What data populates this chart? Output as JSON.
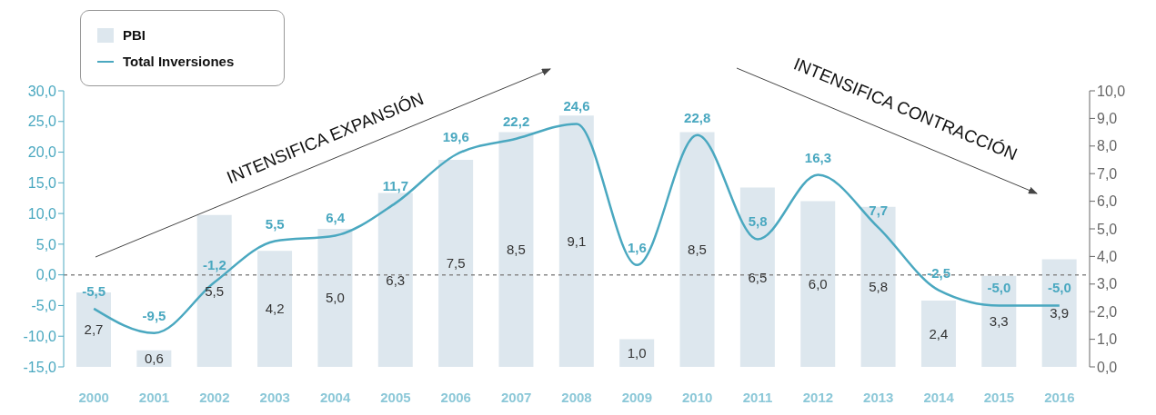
{
  "chart_data": {
    "type": "bar",
    "categories": [
      "2000",
      "2001",
      "2002",
      "2003",
      "2004",
      "2005",
      "2006",
      "2007",
      "2008",
      "2009",
      "2010",
      "2011",
      "2012",
      "2013",
      "2014",
      "2015",
      "2016"
    ],
    "series": [
      {
        "name": "PBI",
        "axis": "y2",
        "color": "#dde7ee",
        "values": [
          2.7,
          0.6,
          5.5,
          4.2,
          5.0,
          6.3,
          7.5,
          8.5,
          9.1,
          1.0,
          8.5,
          6.5,
          6.0,
          5.8,
          2.4,
          3.3,
          3.9
        ],
        "value_labels": [
          "2,7",
          "0,6",
          "5,5",
          "4,2",
          "5,0",
          "6,3",
          "7,5",
          "8,5",
          "9,1",
          "1,0",
          "8,5",
          "6,5",
          "6,0",
          "5,8",
          "2,4",
          "3,3",
          "3,9"
        ]
      },
      {
        "name": "Total Inversiones",
        "type": "line",
        "color": "#4aa8c0",
        "values": [
          -5.5,
          -9.5,
          -1.2,
          5.5,
          6.4,
          11.7,
          19.6,
          22.2,
          24.6,
          1.6,
          22.8,
          5.8,
          16.3,
          7.7,
          -2.5,
          -5.0,
          -5.0
        ],
        "value_labels": [
          "-5,5",
          "-9,5",
          "-1,2",
          "5,5",
          "6,4",
          "11,7",
          "19,6",
          "22,2",
          "24,6",
          "1,6",
          "22,8",
          "5,8",
          "16,3",
          "7,7",
          "-2,5",
          "-5,0",
          "-5,0"
        ]
      }
    ],
    "ylim": [
      -15,
      30
    ],
    "yticks": [
      {
        "value": -15,
        "label": "-15,0"
      },
      {
        "value": -10,
        "label": "-10,0"
      },
      {
        "value": -5,
        "label": "-5,0"
      },
      {
        "value": 0,
        "label": "0,0"
      },
      {
        "value": 5,
        "label": "5,0"
      },
      {
        "value": 10,
        "label": "10,0"
      },
      {
        "value": 15,
        "label": "15,0"
      },
      {
        "value": 20,
        "label": "20,0"
      },
      {
        "value": 25,
        "label": "25,0"
      },
      {
        "value": 30,
        "label": "30,0"
      }
    ],
    "y2lim": [
      0,
      10
    ],
    "y2ticks": [
      {
        "value": 0,
        "label": "0,0"
      },
      {
        "value": 1,
        "label": "1,0"
      },
      {
        "value": 2,
        "label": "2,0"
      },
      {
        "value": 3,
        "label": "3,0"
      },
      {
        "value": 4,
        "label": "4,0"
      },
      {
        "value": 5,
        "label": "5,0"
      },
      {
        "value": 6,
        "label": "6,0"
      },
      {
        "value": 7,
        "label": "7,0"
      },
      {
        "value": 8,
        "label": "8,0"
      },
      {
        "value": 9,
        "label": "9,0"
      },
      {
        "value": 10,
        "label": "10,0"
      }
    ],
    "ref_lines": [
      {
        "axis": "y",
        "value": 0,
        "color": "#888888",
        "line_style": "dashed"
      }
    ],
    "annotations": [
      "INTENSIFICA EXPANSIÓN",
      "INTENSIFICA CONTRACCIÓN"
    ],
    "legend": "top left",
    "marker": "none",
    "line_style": "solid",
    "grid": false
  }
}
